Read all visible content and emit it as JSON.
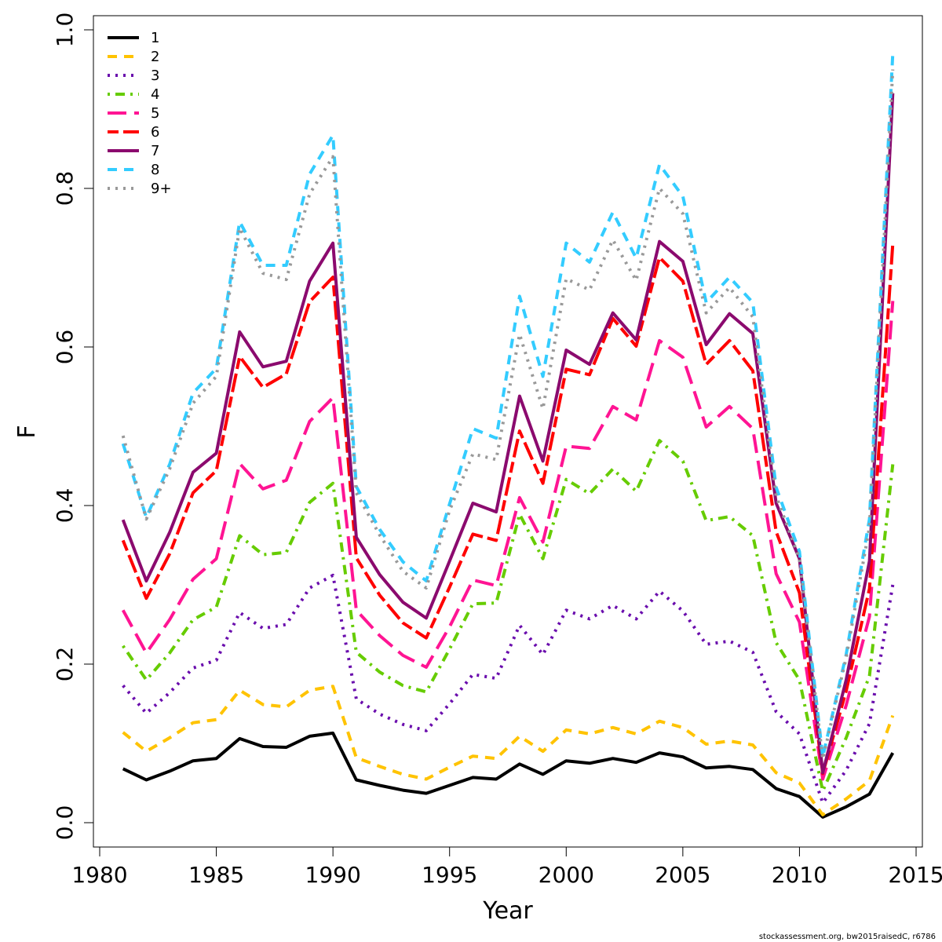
{
  "chart_data": {
    "type": "line",
    "xlabel": "Year",
    "ylabel": "F",
    "xlim": [
      1980,
      2015
    ],
    "ylim": [
      0,
      1.0
    ],
    "x_ticks": [
      "1980",
      "1985",
      "1990",
      "1995",
      "2000",
      "2005",
      "2010",
      "2015"
    ],
    "y_ticks": [
      "0.0",
      "0.2",
      "0.4",
      "0.6",
      "0.8",
      "1.0"
    ],
    "grid": false,
    "legend_position": "top-left",
    "x": [
      1981,
      1982,
      1983,
      1984,
      1985,
      1986,
      1987,
      1988,
      1989,
      1990,
      1991,
      1992,
      1993,
      1994,
      1995,
      1996,
      1997,
      1998,
      1999,
      2000,
      2001,
      2002,
      2003,
      2004,
      2005,
      2006,
      2007,
      2008,
      2009,
      2010,
      2011,
      2012,
      2013,
      2014
    ],
    "series": [
      {
        "name": "1",
        "color": "#000000",
        "dash": "solid",
        "values": [
          0.068,
          0.054,
          0.065,
          0.078,
          0.081,
          0.106,
          0.096,
          0.095,
          0.109,
          0.113,
          0.054,
          0.047,
          0.041,
          0.037,
          0.047,
          0.057,
          0.055,
          0.074,
          0.061,
          0.078,
          0.075,
          0.081,
          0.076,
          0.088,
          0.083,
          0.069,
          0.071,
          0.067,
          0.043,
          0.033,
          0.007,
          0.02,
          0.036,
          0.088
        ]
      },
      {
        "name": "2",
        "color": "#FFC300",
        "dash": "dashed",
        "values": [
          0.114,
          0.09,
          0.107,
          0.126,
          0.13,
          0.167,
          0.149,
          0.146,
          0.167,
          0.172,
          0.082,
          0.071,
          0.061,
          0.055,
          0.07,
          0.084,
          0.081,
          0.109,
          0.09,
          0.117,
          0.112,
          0.12,
          0.112,
          0.128,
          0.12,
          0.099,
          0.103,
          0.098,
          0.063,
          0.05,
          0.01,
          0.03,
          0.053,
          0.135
        ]
      },
      {
        "name": "3",
        "color": "#6A0DAD",
        "dash": "dotted",
        "values": [
          0.173,
          0.138,
          0.164,
          0.195,
          0.205,
          0.265,
          0.245,
          0.25,
          0.296,
          0.312,
          0.156,
          0.137,
          0.124,
          0.116,
          0.15,
          0.187,
          0.182,
          0.249,
          0.212,
          0.268,
          0.257,
          0.274,
          0.257,
          0.292,
          0.267,
          0.225,
          0.229,
          0.215,
          0.14,
          0.112,
          0.025,
          0.066,
          0.125,
          0.3
        ]
      },
      {
        "name": "4",
        "color": "#66CC00",
        "dash": "dotdash",
        "values": [
          0.223,
          0.18,
          0.214,
          0.256,
          0.272,
          0.362,
          0.338,
          0.341,
          0.404,
          0.428,
          0.215,
          0.19,
          0.173,
          0.165,
          0.219,
          0.276,
          0.277,
          0.389,
          0.333,
          0.433,
          0.415,
          0.446,
          0.418,
          0.482,
          0.456,
          0.381,
          0.386,
          0.362,
          0.227,
          0.18,
          0.04,
          0.107,
          0.185,
          0.452
        ]
      },
      {
        "name": "5",
        "color": "#FF1493",
        "dash": "longdash",
        "values": [
          0.268,
          0.214,
          0.256,
          0.307,
          0.333,
          0.453,
          0.421,
          0.432,
          0.506,
          0.536,
          0.268,
          0.236,
          0.211,
          0.196,
          0.247,
          0.306,
          0.299,
          0.41,
          0.354,
          0.475,
          0.472,
          0.525,
          0.508,
          0.608,
          0.587,
          0.499,
          0.525,
          0.497,
          0.314,
          0.253,
          0.055,
          0.148,
          0.26,
          0.658
        ]
      },
      {
        "name": "6",
        "color": "#FF0000",
        "dash": "twodash",
        "values": [
          0.356,
          0.283,
          0.339,
          0.416,
          0.444,
          0.588,
          0.549,
          0.566,
          0.657,
          0.688,
          0.334,
          0.287,
          0.252,
          0.233,
          0.297,
          0.364,
          0.356,
          0.494,
          0.428,
          0.572,
          0.565,
          0.636,
          0.601,
          0.713,
          0.683,
          0.578,
          0.608,
          0.57,
          0.367,
          0.29,
          0.062,
          0.166,
          0.295,
          0.73
        ]
      },
      {
        "name": "7",
        "color": "#8B0A6E",
        "dash": "solid",
        "values": [
          0.382,
          0.305,
          0.366,
          0.442,
          0.466,
          0.619,
          0.575,
          0.582,
          0.683,
          0.731,
          0.36,
          0.313,
          0.278,
          0.258,
          0.33,
          0.403,
          0.392,
          0.538,
          0.456,
          0.596,
          0.578,
          0.643,
          0.609,
          0.733,
          0.708,
          0.603,
          0.642,
          0.617,
          0.403,
          0.333,
          0.063,
          0.18,
          0.33,
          0.92
        ]
      },
      {
        "name": "8",
        "color": "#33CCFF",
        "dash": "dashed",
        "values": [
          0.478,
          0.385,
          0.452,
          0.542,
          0.573,
          0.758,
          0.703,
          0.703,
          0.818,
          0.867,
          0.424,
          0.37,
          0.329,
          0.305,
          0.402,
          0.497,
          0.485,
          0.664,
          0.563,
          0.731,
          0.707,
          0.77,
          0.712,
          0.83,
          0.79,
          0.656,
          0.688,
          0.656,
          0.423,
          0.342,
          0.083,
          0.212,
          0.383,
          0.97
        ]
      },
      {
        "name": "9+",
        "color": "#999999",
        "dash": "dotted",
        "values": [
          0.488,
          0.383,
          0.446,
          0.529,
          0.563,
          0.75,
          0.693,
          0.685,
          0.793,
          0.84,
          0.416,
          0.363,
          0.317,
          0.296,
          0.394,
          0.465,
          0.458,
          0.616,
          0.522,
          0.686,
          0.672,
          0.735,
          0.684,
          0.8,
          0.768,
          0.643,
          0.675,
          0.638,
          0.412,
          0.333,
          0.08,
          0.208,
          0.373,
          0.95
        ]
      }
    ]
  },
  "footer_note": "stockassessment.org, bw2015raisedC, r6786"
}
